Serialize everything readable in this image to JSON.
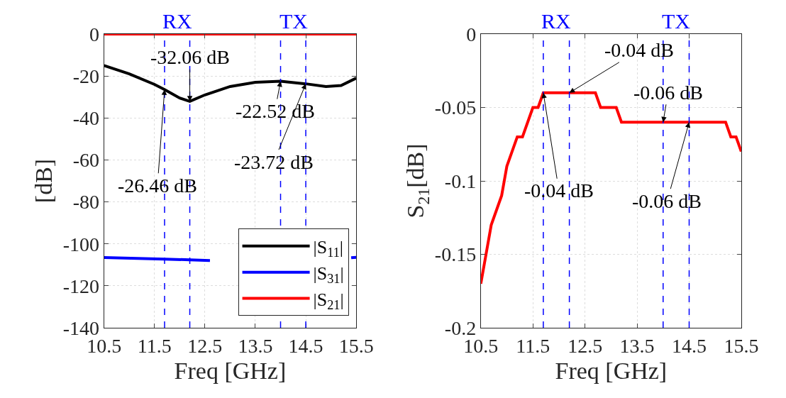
{
  "chart_data": [
    {
      "type": "line",
      "xlabel": "Freq [GHz]",
      "ylabel": "[dB]",
      "xlim": [
        10.5,
        15.5
      ],
      "xticks": [
        10.5,
        11.5,
        12.5,
        13.5,
        14.5,
        15.5
      ],
      "ylim": [
        -140,
        0
      ],
      "yticks": [
        -140,
        -120,
        -100,
        -80,
        -60,
        -40,
        -20,
        0
      ],
      "grid": true,
      "legend": "bottom right",
      "line_style": "solid",
      "series": [
        {
          "name": "|S$_{11}$|",
          "color": "#000000",
          "x": [
            10.5,
            11.0,
            11.5,
            11.7,
            12.0,
            12.2,
            12.5,
            13.0,
            13.5,
            14.0,
            14.5,
            14.9,
            15.2,
            15.5
          ],
          "values": [
            -15,
            -19,
            -24,
            -26.46,
            -30.5,
            -32.06,
            -29,
            -25,
            -23,
            -22.52,
            -23.72,
            -25,
            -24.5,
            -21
          ]
        },
        {
          "name": "|S$_{31}$|",
          "color": "#0000ff",
          "x": [
            10.5,
            11.7,
            12.2,
            12.6,
            12.7,
            15.3,
            15.4,
            15.5
          ],
          "values": [
            -106.5,
            -107.3,
            -107.6,
            -108,
            null,
            null,
            -106.6,
            -106.4
          ]
        },
        {
          "name": "|S$_{21}$|",
          "color": "#ff0000",
          "x": [
            10.5,
            15.5
          ],
          "values": [
            0,
            0
          ]
        }
      ],
      "ref_lines": [
        {
          "axis": "x",
          "value": 11.7,
          "label": "RX",
          "color": "#0000ff",
          "line_style": "dashed"
        },
        {
          "axis": "x",
          "value": 12.2,
          "color": "#0000ff",
          "line_style": "dashed"
        },
        {
          "axis": "x",
          "value": 14.0,
          "label": "TX",
          "color": "#0000ff",
          "line_style": "dashed"
        },
        {
          "axis": "x",
          "value": 14.5,
          "color": "#0000ff",
          "line_style": "dashed"
        }
      ],
      "annotations": [
        {
          "text": "-32.06 dB",
          "x": 12.2,
          "y": -32.06
        },
        {
          "text": "-26.46 dB",
          "x": 11.7,
          "y": -26.46
        },
        {
          "text": "-22.52 dB",
          "x": 14.0,
          "y": -22.52
        },
        {
          "text": "-23.72 dB",
          "x": 14.5,
          "y": -23.72
        }
      ]
    },
    {
      "type": "line",
      "xlabel": "Freq [GHz]",
      "ylabel": "S$_{21}$[dB]",
      "xlim": [
        10.5,
        15.5
      ],
      "xticks": [
        10.5,
        11.5,
        12.5,
        13.5,
        14.5,
        15.5
      ],
      "ylim": [
        -0.2,
        0
      ],
      "yticks": [
        -0.2,
        -0.15,
        -0.1,
        -0.05,
        0
      ],
      "grid": true,
      "line_style": "solid",
      "series": [
        {
          "color": "#ff0000",
          "x": [
            10.5,
            10.7,
            10.9,
            11.0,
            11.2,
            11.3,
            11.5,
            11.6,
            11.7,
            12.7,
            12.8,
            13.1,
            13.2,
            15.2,
            15.3,
            15.4,
            15.5
          ],
          "values": [
            -0.17,
            -0.13,
            -0.11,
            -0.09,
            -0.07,
            -0.07,
            -0.05,
            -0.05,
            -0.04,
            -0.04,
            -0.05,
            -0.05,
            -0.06,
            -0.06,
            -0.07,
            -0.07,
            -0.08
          ]
        }
      ],
      "ref_lines": [
        {
          "axis": "x",
          "value": 11.7,
          "label": "RX",
          "color": "#0000ff",
          "line_style": "dashed"
        },
        {
          "axis": "x",
          "value": 12.2,
          "color": "#0000ff",
          "line_style": "dashed"
        },
        {
          "axis": "x",
          "value": 14.0,
          "label": "TX",
          "color": "#0000ff",
          "line_style": "dashed"
        },
        {
          "axis": "x",
          "value": 14.5,
          "color": "#0000ff",
          "line_style": "dashed"
        }
      ],
      "annotations": [
        {
          "text": "-0.04 dB",
          "x": 12.2,
          "y": -0.04
        },
        {
          "text": "-0.04 dB",
          "x": 11.7,
          "y": -0.04
        },
        {
          "text": "-0.06 dB",
          "x": 14.0,
          "y": -0.06
        },
        {
          "text": "-0.06 dB",
          "x": 14.5,
          "y": -0.06
        }
      ]
    }
  ]
}
